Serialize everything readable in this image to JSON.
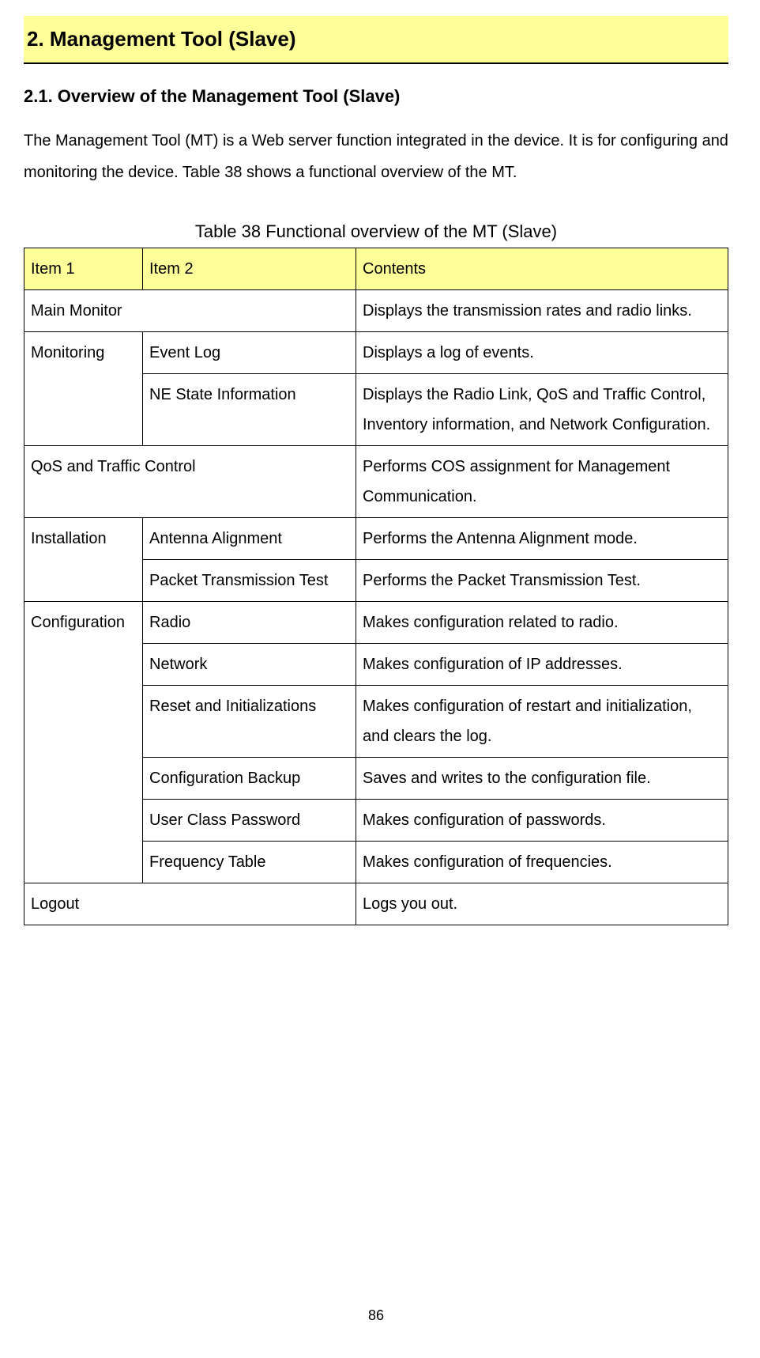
{
  "colors": {
    "highlight_bg": "#ffff99",
    "border": "#000000",
    "text": "#000000",
    "page_bg": "#ffffff"
  },
  "section": {
    "title": "2.  Management Tool (Slave)"
  },
  "subsection": {
    "title": "2.1.  Overview of the Management Tool (Slave)"
  },
  "paragraph": "The Management Tool (MT) is a Web server function integrated in the device. It is for configuring and monitoring the device. Table 38 shows a functional overview of the MT.",
  "table": {
    "caption": "Table 38 Functional overview of the MT (Slave)",
    "headers": {
      "item1": "Item 1",
      "item2": "Item 2",
      "contents": "Contents"
    },
    "rows": {
      "main_monitor": {
        "item1": "Main Monitor",
        "contents": "Displays the transmission rates and radio links."
      },
      "monitoring": {
        "item1": "Monitoring",
        "sub": {
          "event_log": {
            "item2": "Event Log",
            "contents": "Displays a log of events."
          },
          "ne_state": {
            "item2": "NE State Information",
            "contents": "Displays the Radio Link, QoS and Traffic Control, Inventory information, and Network Configuration."
          }
        }
      },
      "qos": {
        "item1": "QoS and Traffic Control",
        "contents": "Performs COS assignment for Management Communication."
      },
      "installation": {
        "item1": "Installation",
        "sub": {
          "antenna": {
            "item2": "Antenna Alignment",
            "contents": "Performs the Antenna Alignment mode."
          },
          "packet": {
            "item2": "Packet Transmission Test",
            "contents": "Performs the Packet Transmission Test."
          }
        }
      },
      "configuration": {
        "item1": "Configuration",
        "sub": {
          "radio": {
            "item2": "Radio",
            "contents": "Makes configuration related to radio."
          },
          "network": {
            "item2": "Network",
            "contents": "Makes configuration of IP addresses."
          },
          "reset": {
            "item2": "Reset and Initializations",
            "contents": "Makes configuration of restart and initialization, and clears the log."
          },
          "backup": {
            "item2": "Configuration Backup",
            "contents": "Saves and writes to the configuration file."
          },
          "password": {
            "item2": "User Class Password",
            "contents": "Makes configuration of passwords."
          },
          "frequency": {
            "item2": "Frequency Table",
            "contents": "Makes configuration of frequencies."
          }
        }
      },
      "logout": {
        "item1": "Logout",
        "contents": "Logs you out."
      }
    }
  },
  "page_number": "86"
}
